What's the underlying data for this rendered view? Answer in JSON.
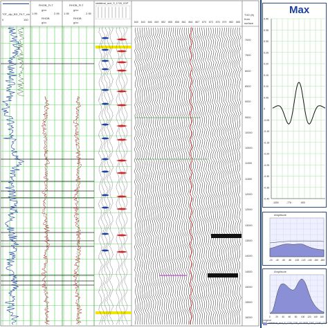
{
  "tracks": {
    "t1": {
      "header1": "T0T_dip_BD_FILT_clo",
      "min": "0",
      "max": "150"
    },
    "t2": {
      "header1": "RHOB_FLT",
      "unit1": "g/cc",
      "min1": "1.95",
      "max1": "2.95",
      "header2": "RHOB",
      "unit2": "g/cc"
    },
    "t3": {
      "header1": "RHOB_FLT",
      "unit1": "g/cc",
      "min1": "1.95",
      "max1": "2.95",
      "header2": "RHOB",
      "unit2": "g/cc"
    },
    "t4": {
      "header1": "statistical_avct_S_1728_CDP"
    },
    "tvd": {
      "label1": "TVD (ft)",
      "label2": "from",
      "label3": "surface"
    }
  },
  "seismic": {
    "trace_numbers": [
      "840",
      "843",
      "846",
      "849",
      "852",
      "855",
      "858",
      "861",
      "864",
      "867",
      "870",
      "873",
      "876",
      "879",
      "882",
      "885"
    ]
  },
  "depth_ticks": [
    "7000",
    "7500",
    "8000",
    "8500",
    "9000",
    "9500",
    "10000",
    "10500",
    "11000",
    "11500",
    "12000",
    "12500",
    "13000",
    "13500",
    "14000",
    "14500",
    "15000",
    "15500",
    "16000"
  ],
  "wavelet": {
    "title": "Max",
    "yticks": [
      "0.40",
      "0.35",
      "0.30",
      "0.25",
      "0.20",
      "0.15",
      "0.10",
      "0.05",
      "0",
      "-0.05",
      "-0.10",
      "-0.15",
      "-0.20",
      "-0.25",
      "-0.30",
      "-0.35",
      "-0.40"
    ],
    "xticks": [
      "-1000",
      "-776",
      "-500"
    ]
  },
  "spectrum1": {
    "title": "Amplitude",
    "xticks": [
      "-20",
      "-40",
      "-60",
      "-80",
      "-100",
      "-120",
      "-140",
      "-160",
      "-180"
    ]
  },
  "spectrum2": {
    "title": "Amplitude",
    "xticks": [
      "0",
      "20",
      "40",
      "60",
      "80",
      "100",
      "120",
      "140",
      "160"
    ]
  },
  "legend": {
    "label": "Legend",
    "item": "statistical_avct_S_1728_CDP_420.8638_TWT_12460_CDP_250"
  },
  "colors": {
    "accent": "#1a3fa0",
    "grid": "#33cc33",
    "log_blue": "#1a3fa0",
    "log_red": "#cc2222",
    "spectrum_fill": "#8a8fd6"
  }
}
